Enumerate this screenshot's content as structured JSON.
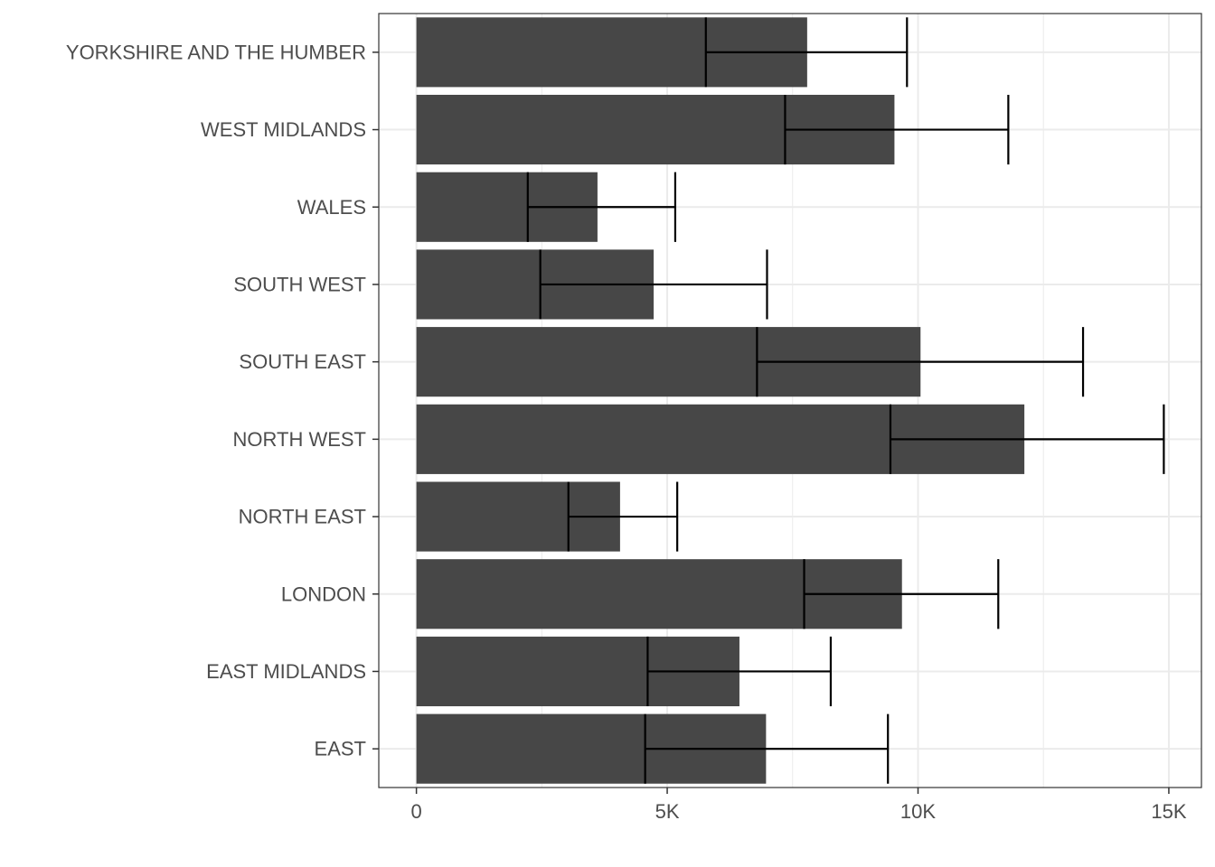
{
  "chart_data": {
    "type": "bar",
    "orientation": "horizontal",
    "title": "",
    "xlabel": "",
    "ylabel": "",
    "categories": [
      "EAST",
      "EAST MIDLANDS",
      "LONDON",
      "NORTH EAST",
      "NORTH WEST",
      "SOUTH EAST",
      "SOUTH WEST",
      "WALES",
      "WEST MIDLANDS",
      "YORKSHIRE AND THE HUMBER"
    ],
    "values": [
      6970,
      6440,
      9680,
      4060,
      12120,
      10050,
      4730,
      3610,
      9530,
      7790
    ],
    "error_bars": {
      "lower": [
        4560,
        4610,
        7730,
        3030,
        9450,
        6790,
        2470,
        2220,
        7350,
        5770
      ],
      "upper": [
        9400,
        8260,
        11600,
        5200,
        14900,
        13290,
        6990,
        5160,
        11800,
        9780
      ]
    },
    "xlim": [
      -750,
      15650
    ],
    "x_ticks": [
      0,
      5000,
      10000,
      15000
    ],
    "x_tick_labels": [
      "0",
      "5K",
      "10K",
      "15K"
    ],
    "grid": true,
    "legend": "none",
    "colors": {
      "bar": "#474747",
      "error_bar": "#000000",
      "grid": "#ebebeb",
      "panel_border": "#333333"
    }
  }
}
